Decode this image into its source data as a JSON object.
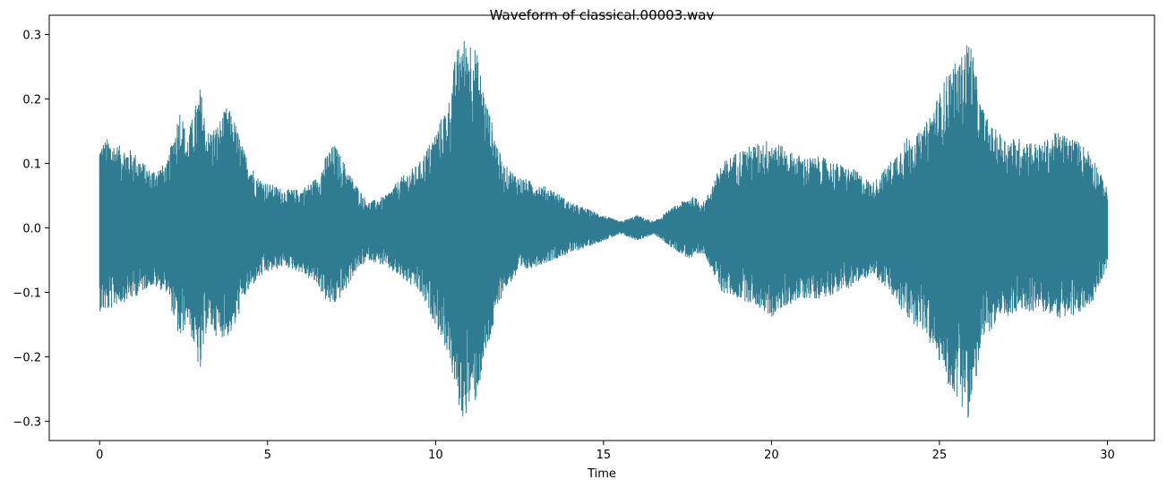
{
  "chart_data": {
    "type": "area",
    "title": "Waveform of classical.00003.wav",
    "xlabel": "Time",
    "ylabel": "",
    "xlim": [
      -1.5,
      31.4
    ],
    "ylim": [
      -0.33,
      0.33
    ],
    "x_ticks": [
      0,
      5,
      10,
      15,
      20,
      25,
      30
    ],
    "x_tick_labels": [
      "0",
      "5",
      "10",
      "15",
      "20",
      "25",
      "30"
    ],
    "y_ticks": [
      0.3,
      0.2,
      0.1,
      0.0,
      -0.1,
      -0.2,
      -0.3
    ],
    "y_tick_labels": [
      "0.3",
      "0.2",
      "0.1",
      "0.0",
      "−0.1",
      "−0.2",
      "−0.3"
    ],
    "grid": false,
    "color": "#2e7b92",
    "series": [
      {
        "x": [
          0,
          0.25,
          0.5,
          1.0,
          1.5,
          2.0,
          2.4,
          2.6,
          3.0,
          3.2,
          3.5,
          3.8,
          4.0,
          4.3,
          4.7,
          5.0,
          5.5,
          6.0,
          6.5,
          6.8,
          7.0,
          7.3,
          7.6,
          8.0,
          8.5,
          9.0,
          9.5,
          10.0,
          10.4,
          10.6,
          10.8,
          10.9,
          11.0,
          11.2,
          11.5,
          12.0,
          12.5,
          13.0,
          13.5,
          14.0,
          14.5,
          15.0,
          15.5,
          16.0,
          16.5,
          17.0,
          17.3,
          17.6,
          18.0,
          18.5,
          19.0,
          19.5,
          20.0,
          20.5,
          21.0,
          21.5,
          22.0,
          22.5,
          23.0,
          23.5,
          24.0,
          24.5,
          24.8,
          25.0,
          25.3,
          25.6,
          25.9,
          26.0,
          26.2,
          26.5,
          27.0,
          27.5,
          28.0,
          28.5,
          29.0,
          29.5,
          30.0
        ],
        "y_max": [
          0.13,
          0.14,
          0.13,
          0.12,
          0.09,
          0.1,
          0.19,
          0.14,
          0.22,
          0.15,
          0.16,
          0.19,
          0.17,
          0.12,
          0.08,
          0.07,
          0.06,
          0.06,
          0.08,
          0.12,
          0.13,
          0.1,
          0.07,
          0.04,
          0.05,
          0.08,
          0.1,
          0.15,
          0.2,
          0.27,
          0.3,
          0.29,
          0.3,
          0.28,
          0.2,
          0.1,
          0.08,
          0.07,
          0.06,
          0.04,
          0.03,
          0.02,
          0.01,
          0.02,
          0.01,
          0.03,
          0.04,
          0.05,
          0.04,
          0.1,
          0.12,
          0.13,
          0.14,
          0.12,
          0.11,
          0.11,
          0.1,
          0.09,
          0.07,
          0.1,
          0.14,
          0.15,
          0.19,
          0.21,
          0.25,
          0.26,
          0.3,
          0.27,
          0.2,
          0.16,
          0.14,
          0.14,
          0.13,
          0.15,
          0.14,
          0.12,
          0.06
        ],
        "y_min": [
          -0.13,
          -0.13,
          -0.12,
          -0.11,
          -0.09,
          -0.1,
          -0.18,
          -0.14,
          -0.23,
          -0.15,
          -0.17,
          -0.17,
          -0.16,
          -0.11,
          -0.08,
          -0.07,
          -0.06,
          -0.07,
          -0.09,
          -0.12,
          -0.12,
          -0.1,
          -0.07,
          -0.05,
          -0.06,
          -0.08,
          -0.1,
          -0.15,
          -0.2,
          -0.26,
          -0.3,
          -0.29,
          -0.28,
          -0.27,
          -0.2,
          -0.1,
          -0.07,
          -0.06,
          -0.05,
          -0.04,
          -0.03,
          -0.02,
          -0.01,
          -0.02,
          -0.01,
          -0.03,
          -0.04,
          -0.05,
          -0.04,
          -0.1,
          -0.11,
          -0.12,
          -0.14,
          -0.12,
          -0.11,
          -0.11,
          -0.1,
          -0.09,
          -0.07,
          -0.1,
          -0.14,
          -0.16,
          -0.19,
          -0.21,
          -0.25,
          -0.27,
          -0.3,
          -0.27,
          -0.2,
          -0.16,
          -0.14,
          -0.13,
          -0.13,
          -0.14,
          -0.14,
          -0.12,
          -0.06
        ]
      }
    ]
  }
}
